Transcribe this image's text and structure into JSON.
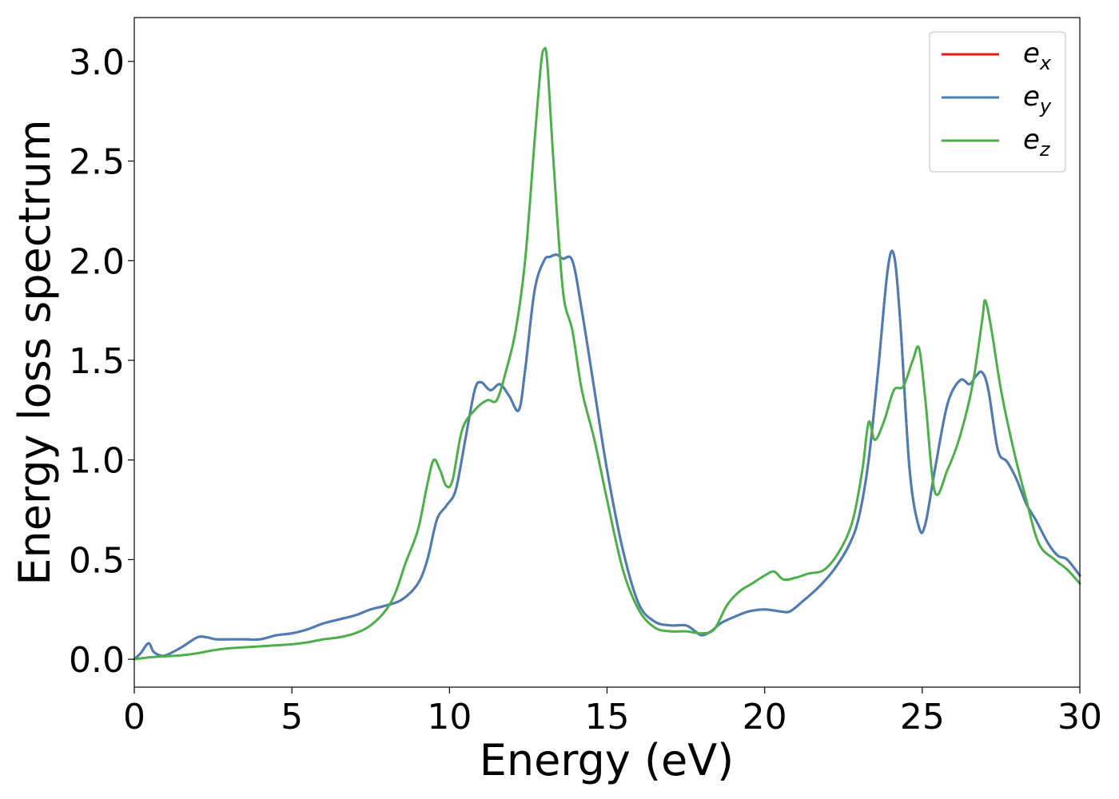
{
  "chart_data": {
    "type": "line",
    "xlabel": "Energy (eV)",
    "ylabel": "Energy loss spectrum",
    "xlim": [
      0,
      30
    ],
    "ylim": [
      -0.14,
      3.22
    ],
    "xticks": [
      0,
      5,
      10,
      15,
      20,
      25,
      30
    ],
    "xtick_labels": [
      "0",
      "5",
      "10",
      "15",
      "20",
      "25",
      "30"
    ],
    "yticks": [
      0.0,
      0.5,
      1.0,
      1.5,
      2.0,
      2.5,
      3.0
    ],
    "ytick_labels": [
      "0.0",
      "0.5",
      "1.0",
      "1.5",
      "2.0",
      "2.5",
      "3.0"
    ],
    "grid": false,
    "legend_position": "top-right",
    "series": [
      {
        "name": "e_x",
        "label_base": "e",
        "label_sub": "x",
        "color": "#e41a1c",
        "x": [
          0,
          0.2,
          0.45,
          0.6,
          0.8,
          1.0,
          1.5,
          2.0,
          2.3,
          2.6,
          3.0,
          3.5,
          4.0,
          4.5,
          5.0,
          5.5,
          6.0,
          6.5,
          7.0,
          7.5,
          8.0,
          8.5,
          9.0,
          9.3,
          9.6,
          9.9,
          10.2,
          10.5,
          10.8,
          11.0,
          11.3,
          11.6,
          11.9,
          12.2,
          12.4,
          12.7,
          13.0,
          13.2,
          13.4,
          13.6,
          13.9,
          14.2,
          14.6,
          15.0,
          15.5,
          16.0,
          16.5,
          17.0,
          17.5,
          17.8,
          18.0,
          18.3,
          18.6,
          19.0,
          19.5,
          20.0,
          20.5,
          20.8,
          21.2,
          21.7,
          22.2,
          22.7,
          23.0,
          23.3,
          23.6,
          23.9,
          24.1,
          24.3,
          24.6,
          24.9,
          25.1,
          25.4,
          25.8,
          26.2,
          26.5,
          26.7,
          26.9,
          27.1,
          27.4,
          27.7,
          28.0,
          28.3,
          28.6,
          29.0,
          29.3,
          29.6,
          30.0
        ],
        "y": [
          0.0,
          0.03,
          0.08,
          0.04,
          0.02,
          0.02,
          0.06,
          0.11,
          0.11,
          0.1,
          0.1,
          0.1,
          0.1,
          0.12,
          0.13,
          0.15,
          0.18,
          0.2,
          0.22,
          0.25,
          0.27,
          0.3,
          0.38,
          0.5,
          0.7,
          0.77,
          0.85,
          1.1,
          1.35,
          1.39,
          1.35,
          1.38,
          1.32,
          1.25,
          1.45,
          1.85,
          2.0,
          2.02,
          2.03,
          2.01,
          2.0,
          1.75,
          1.35,
          0.95,
          0.55,
          0.28,
          0.19,
          0.17,
          0.17,
          0.14,
          0.12,
          0.14,
          0.18,
          0.21,
          0.24,
          0.25,
          0.24,
          0.24,
          0.29,
          0.36,
          0.45,
          0.58,
          0.72,
          1.0,
          1.45,
          1.95,
          2.03,
          1.7,
          0.95,
          0.66,
          0.68,
          0.95,
          1.28,
          1.4,
          1.38,
          1.42,
          1.44,
          1.35,
          1.05,
          0.99,
          0.9,
          0.78,
          0.7,
          0.58,
          0.52,
          0.5,
          0.42
        ]
      },
      {
        "name": "e_y",
        "label_base": "e",
        "label_sub": "y",
        "color": "#4a7fb5",
        "x": [
          0,
          0.2,
          0.45,
          0.6,
          0.8,
          1.0,
          1.5,
          2.0,
          2.3,
          2.6,
          3.0,
          3.5,
          4.0,
          4.5,
          5.0,
          5.5,
          6.0,
          6.5,
          7.0,
          7.5,
          8.0,
          8.5,
          9.0,
          9.3,
          9.6,
          9.9,
          10.2,
          10.5,
          10.8,
          11.0,
          11.3,
          11.6,
          11.9,
          12.2,
          12.4,
          12.7,
          13.0,
          13.2,
          13.4,
          13.6,
          13.9,
          14.2,
          14.6,
          15.0,
          15.5,
          16.0,
          16.5,
          17.0,
          17.5,
          17.8,
          18.0,
          18.3,
          18.6,
          19.0,
          19.5,
          20.0,
          20.5,
          20.8,
          21.2,
          21.7,
          22.2,
          22.7,
          23.0,
          23.3,
          23.6,
          23.9,
          24.1,
          24.3,
          24.6,
          24.9,
          25.1,
          25.4,
          25.8,
          26.2,
          26.5,
          26.7,
          26.9,
          27.1,
          27.4,
          27.7,
          28.0,
          28.3,
          28.6,
          29.0,
          29.3,
          29.6,
          30.0
        ],
        "y": [
          0.0,
          0.03,
          0.08,
          0.04,
          0.02,
          0.02,
          0.06,
          0.11,
          0.11,
          0.1,
          0.1,
          0.1,
          0.1,
          0.12,
          0.13,
          0.15,
          0.18,
          0.2,
          0.22,
          0.25,
          0.27,
          0.3,
          0.38,
          0.5,
          0.7,
          0.77,
          0.85,
          1.1,
          1.35,
          1.39,
          1.35,
          1.38,
          1.32,
          1.25,
          1.45,
          1.85,
          2.0,
          2.02,
          2.03,
          2.01,
          2.0,
          1.75,
          1.35,
          0.95,
          0.55,
          0.28,
          0.19,
          0.17,
          0.17,
          0.14,
          0.12,
          0.14,
          0.18,
          0.21,
          0.24,
          0.25,
          0.24,
          0.24,
          0.29,
          0.36,
          0.45,
          0.58,
          0.72,
          1.0,
          1.45,
          1.95,
          2.03,
          1.7,
          0.95,
          0.66,
          0.68,
          0.95,
          1.28,
          1.4,
          1.38,
          1.42,
          1.44,
          1.35,
          1.05,
          0.99,
          0.9,
          0.78,
          0.7,
          0.58,
          0.52,
          0.5,
          0.42
        ]
      },
      {
        "name": "e_z",
        "label_base": "e",
        "label_sub": "z",
        "color": "#4daf4a",
        "x": [
          0,
          0.5,
          1.0,
          1.5,
          2.0,
          2.5,
          3.0,
          3.5,
          4.0,
          4.5,
          5.0,
          5.5,
          6.0,
          6.5,
          7.0,
          7.5,
          8.0,
          8.3,
          8.6,
          9.0,
          9.3,
          9.5,
          9.7,
          9.9,
          10.1,
          10.4,
          10.8,
          11.2,
          11.5,
          11.8,
          12.1,
          12.4,
          12.7,
          12.9,
          13.0,
          13.1,
          13.3,
          13.6,
          13.9,
          14.2,
          14.6,
          15.0,
          15.5,
          16.0,
          16.5,
          17.0,
          17.5,
          18.0,
          18.4,
          18.8,
          19.2,
          19.6,
          20.0,
          20.3,
          20.6,
          21.0,
          21.4,
          21.9,
          22.4,
          22.8,
          23.1,
          23.3,
          23.5,
          23.8,
          24.1,
          24.4,
          24.7,
          24.9,
          25.1,
          25.4,
          25.8,
          26.2,
          26.6,
          26.9,
          27.0,
          27.2,
          27.5,
          27.9,
          28.3,
          28.7,
          29.2,
          29.6,
          30.0
        ],
        "y": [
          0.0,
          0.01,
          0.015,
          0.02,
          0.03,
          0.045,
          0.055,
          0.06,
          0.065,
          0.07,
          0.075,
          0.085,
          0.1,
          0.11,
          0.13,
          0.17,
          0.25,
          0.34,
          0.48,
          0.65,
          0.88,
          1.0,
          0.95,
          0.87,
          0.9,
          1.15,
          1.25,
          1.3,
          1.3,
          1.45,
          1.65,
          2.0,
          2.6,
          2.98,
          3.06,
          3.0,
          2.5,
          1.85,
          1.65,
          1.35,
          1.1,
          0.8,
          0.45,
          0.25,
          0.16,
          0.14,
          0.14,
          0.13,
          0.15,
          0.27,
          0.34,
          0.38,
          0.42,
          0.44,
          0.4,
          0.41,
          0.43,
          0.45,
          0.55,
          0.7,
          0.95,
          1.19,
          1.1,
          1.2,
          1.35,
          1.37,
          1.5,
          1.56,
          1.3,
          0.84,
          0.95,
          1.12,
          1.38,
          1.7,
          1.8,
          1.65,
          1.35,
          1.05,
          0.8,
          0.58,
          0.5,
          0.45,
          0.38
        ]
      }
    ]
  }
}
